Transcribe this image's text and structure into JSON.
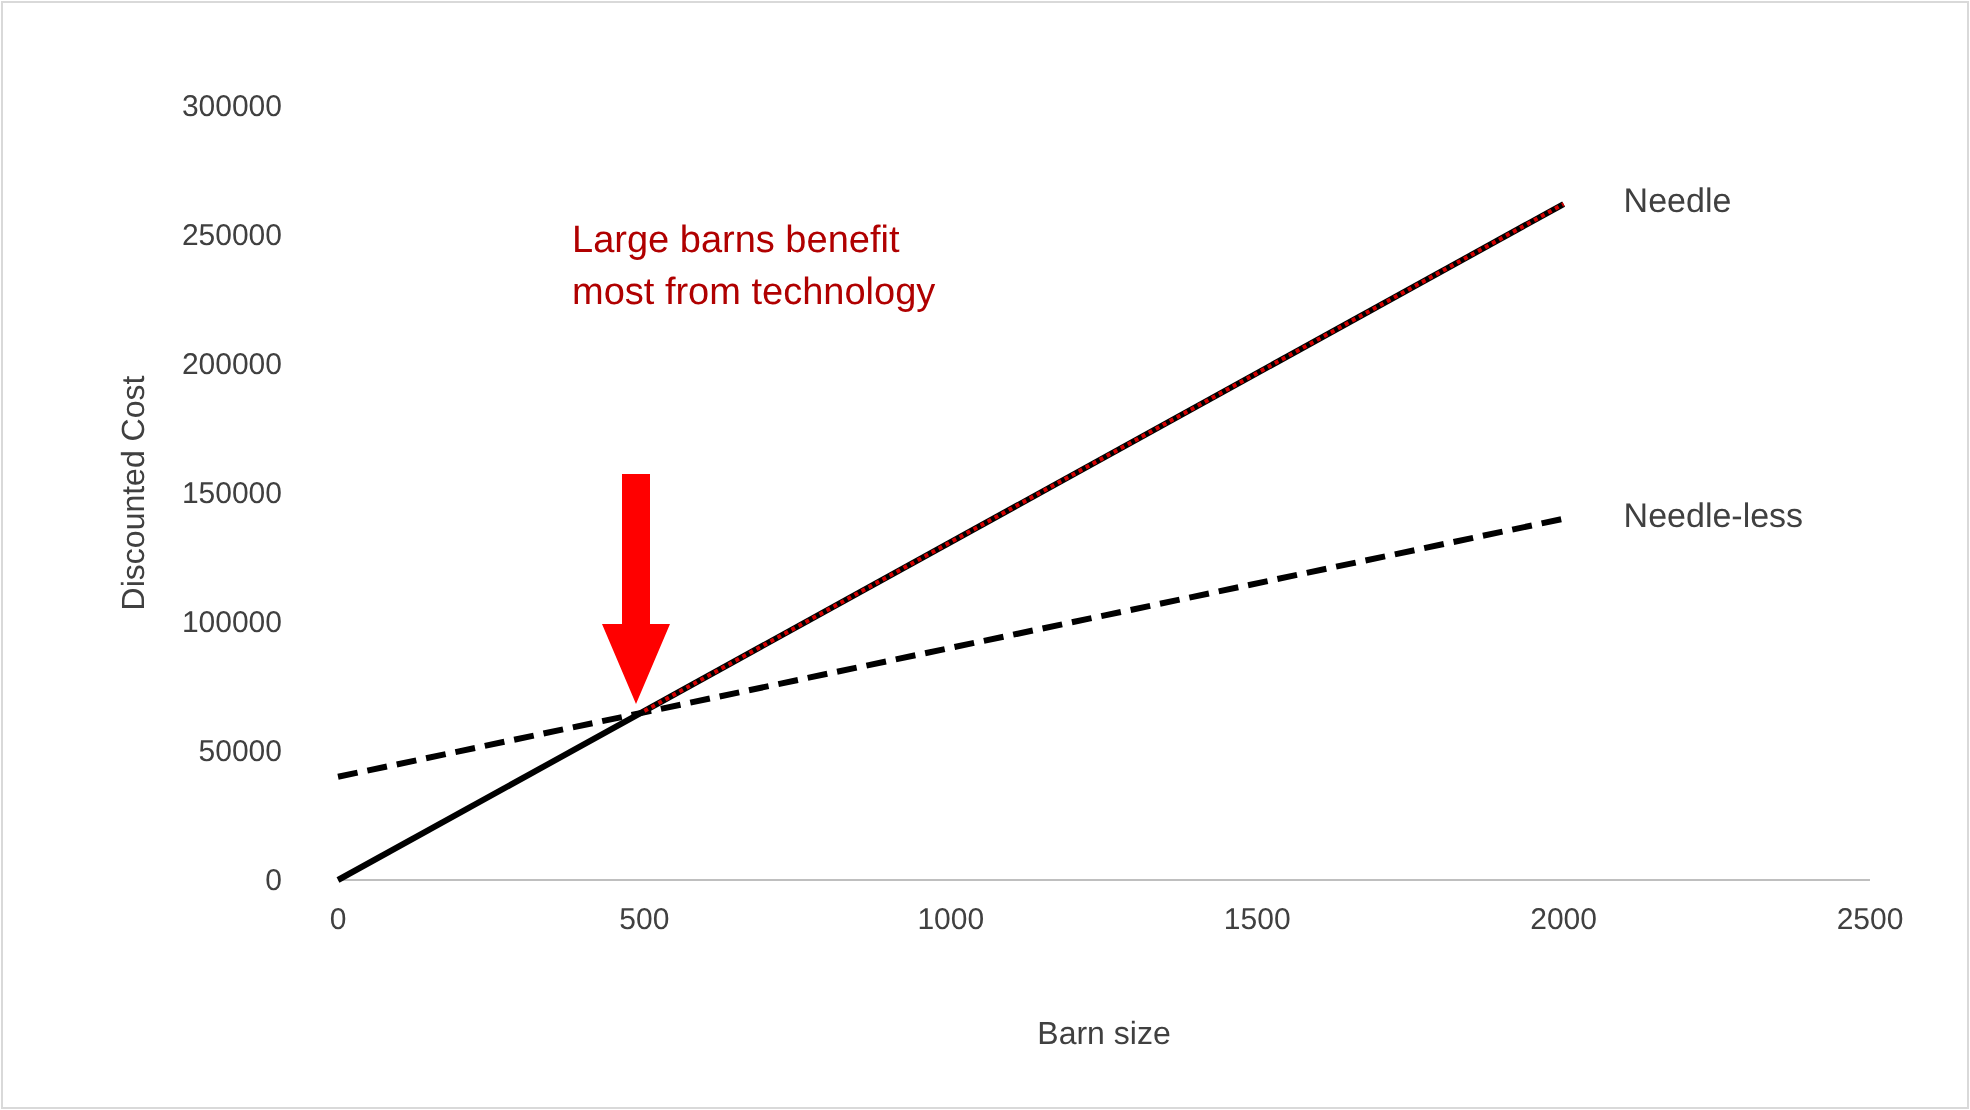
{
  "chart_data": {
    "type": "line",
    "xlabel": "Barn size",
    "ylabel": "Discounted Cost",
    "xlim": [
      0,
      2500
    ],
    "xticks": [
      0,
      500,
      1000,
      1500,
      2000,
      2500
    ],
    "ylim": [
      0,
      300000
    ],
    "yticks": [
      0,
      50000,
      100000,
      150000,
      200000,
      250000,
      300000
    ],
    "grid": false,
    "legend": false,
    "marker": "none",
    "series": [
      {
        "name": "Needle",
        "color": "#000000",
        "line_style": "solid",
        "x": [
          0,
          2000
        ],
        "values": [
          0,
          262000
        ]
      },
      {
        "name": "Needle-less",
        "color": "#000000",
        "line_style": "dashed",
        "x": [
          0,
          2000
        ],
        "values": [
          40000,
          140000
        ]
      },
      {
        "color": "#d40000",
        "line_style": "dotted",
        "x": [
          500,
          2000
        ],
        "values": [
          65500,
          262000
        ]
      }
    ],
    "annotations": [
      "Large barns benefit most from technology"
    ]
  }
}
